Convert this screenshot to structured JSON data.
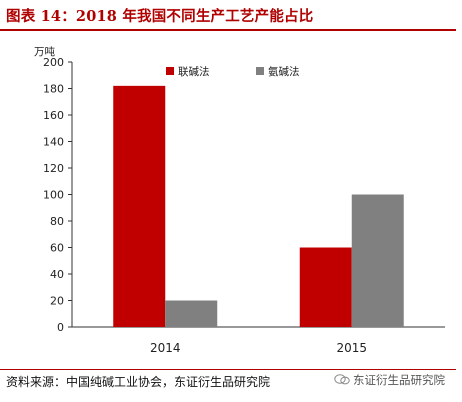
{
  "header": {
    "title": "图表 14：2018 年我国不同生产工艺产能占比"
  },
  "footer": {
    "source": "资料来源：中国纯碱工业协会，东证衍生品研究院",
    "watermark": "东证衍生品研究院"
  },
  "chart_data": {
    "type": "bar",
    "title": "图表 14：2018 年我国不同生产工艺产能占比",
    "ylabel": "万吨",
    "xlabel": "",
    "ylim": [
      0,
      200
    ],
    "yticks": [
      0,
      20,
      40,
      60,
      80,
      100,
      120,
      140,
      160,
      180,
      200
    ],
    "categories": [
      "2014",
      "2015"
    ],
    "series": [
      {
        "name": "联碱法",
        "color": "#c00000",
        "values": [
          182,
          60
        ]
      },
      {
        "name": "氨碱法",
        "color": "#808080",
        "values": [
          20,
          100
        ]
      }
    ],
    "legend_position": "top-right",
    "grid": false
  }
}
